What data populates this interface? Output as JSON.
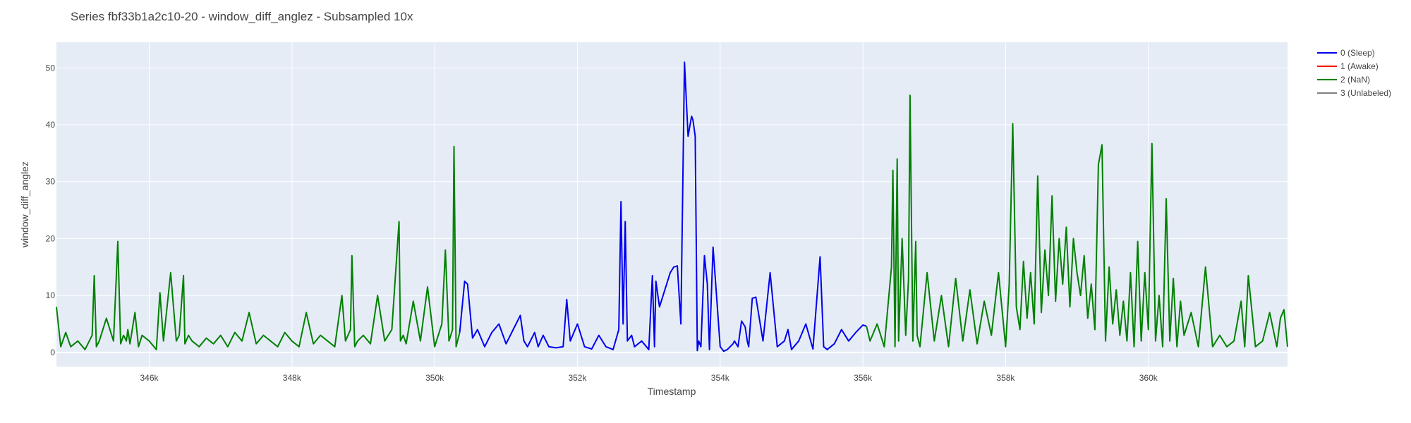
{
  "chart_data": {
    "type": "line",
    "title": "Series fbf33b1a2c10-20 - window_diff_anglez - Subsampled 10x",
    "xlabel": "Timestamp",
    "ylabel": "window_diff_anglez",
    "xlim": [
      344700,
      361950
    ],
    "ylim": [
      -2.5,
      54.5
    ],
    "xticks": [
      346000,
      348000,
      350000,
      352000,
      354000,
      356000,
      358000,
      360000
    ],
    "xtick_labels": [
      "346k",
      "348k",
      "350k",
      "352k",
      "354k",
      "356k",
      "358k",
      "360k"
    ],
    "yticks": [
      0,
      10,
      20,
      30,
      40,
      50
    ],
    "ytick_labels": [
      "0",
      "10",
      "20",
      "30",
      "40",
      "50"
    ],
    "grid": true,
    "legend_position": "top-right",
    "colors": {
      "plot_background": "#e5ecf6",
      "grid": "#ffffff",
      "sleep": "#0000ee",
      "awake": "#ff0000",
      "nan": "#008000",
      "unlabeled": "#808080"
    },
    "series": [
      {
        "name": "0 (Sleep)",
        "color": "#0000ee",
        "x": [
          350350,
          350420,
          350460,
          350530,
          350600,
          350700,
          350800,
          350900,
          351000,
          351100,
          351200,
          351250,
          351300,
          351400,
          351450,
          351520,
          351600,
          351700,
          351800,
          351850,
          351900,
          352000,
          352100,
          352200,
          352300,
          352400,
          352500,
          352580,
          352610,
          352640,
          352670,
          352700,
          352760,
          352800,
          352900,
          353000,
          353050,
          353080,
          353100,
          353150,
          353200,
          353300,
          353350,
          353400,
          353450,
          353500,
          353550,
          353600,
          353620,
          353650,
          353680,
          353700,
          353730,
          353780,
          353820,
          353850,
          353900,
          354000,
          354050,
          354100,
          354180,
          354200,
          354250,
          354300,
          354350,
          354380,
          354400,
          354450,
          354500,
          354600,
          354700,
          354800,
          354900,
          354950,
          355000,
          355100,
          355200,
          355300,
          355400,
          355450,
          355500,
          355600,
          355700,
          355800,
          355900,
          356000,
          356050
        ],
        "values": [
          3.5,
          12.5,
          12,
          2.5,
          4,
          1,
          3.5,
          5,
          1.5,
          4,
          6.5,
          2,
          1,
          3.5,
          1,
          3,
          1,
          0.8,
          1,
          9.3,
          2,
          5,
          1,
          0.6,
          3,
          1,
          0.5,
          4,
          26.5,
          5,
          23,
          2,
          3,
          1,
          2,
          0.5,
          13.5,
          1,
          12.5,
          8,
          10,
          14,
          15,
          15.2,
          5,
          51,
          38,
          41.5,
          40.8,
          38,
          0.3,
          2,
          1,
          17,
          12,
          0.5,
          18.5,
          1,
          0.2,
          0.5,
          1.5,
          2,
          1,
          5.5,
          4.5,
          2,
          1,
          9.5,
          9.7,
          2,
          14,
          1,
          2,
          4,
          0.5,
          2,
          5,
          0.6,
          16.8,
          1,
          0.5,
          1.5,
          4,
          2,
          3.5,
          4.8,
          4.6
        ]
      },
      {
        "name": "1 (Awake)",
        "color": "#ff0000",
        "x": [],
        "values": []
      },
      {
        "name": "2 (NaN)",
        "color": "#008000",
        "x": [
          344700,
          344760,
          344830,
          344900,
          345000,
          345100,
          345200,
          345230,
          345260,
          345300,
          345400,
          345500,
          345560,
          345600,
          345640,
          345680,
          345700,
          345730,
          345800,
          345850,
          345900,
          346000,
          346100,
          346150,
          346200,
          346300,
          346380,
          346420,
          346480,
          346500,
          346550,
          346600,
          346700,
          346800,
          346900,
          347000,
          347100,
          347200,
          347300,
          347400,
          347500,
          347600,
          347700,
          347800,
          347900,
          348000,
          348100,
          348200,
          348300,
          348400,
          348500,
          348600,
          348700,
          348750,
          348820,
          348840,
          348880,
          348920,
          349000,
          349100,
          349200,
          349300,
          349400,
          349500,
          349520,
          349560,
          349600,
          349700,
          349800,
          349900,
          350000,
          350100,
          350150,
          350200,
          350250,
          350270,
          350300,
          350350
        ],
        "values": [
          8,
          1,
          3.5,
          1,
          2,
          0.5,
          3,
          13.5,
          1,
          2,
          6,
          2,
          19.5,
          1.5,
          3,
          2,
          4,
          1.5,
          7,
          1,
          3,
          2,
          0.5,
          10.5,
          2,
          14,
          2,
          3,
          13.5,
          1.5,
          3,
          2,
          1,
          2.5,
          1.5,
          3,
          1,
          3.5,
          2,
          7,
          1.5,
          3,
          2,
          1,
          3.5,
          2,
          1,
          7,
          1.5,
          3,
          2,
          1,
          10,
          2,
          4,
          17,
          1,
          2,
          3,
          1.5,
          10,
          2,
          4,
          23,
          2,
          3,
          1.5,
          9,
          2,
          11.5,
          1,
          5,
          18,
          2,
          4,
          36.2,
          1,
          3.5
        ]
      },
      {
        "name": "2 (NaN)",
        "color": "#008000",
        "x": [
          356050,
          356100,
          356200,
          356300,
          356400,
          356420,
          356450,
          356480,
          356500,
          356550,
          356600,
          356640,
          356660,
          356700,
          356740,
          356760,
          356800,
          356900,
          357000,
          357100,
          357200,
          357300,
          357400,
          357500,
          357600,
          357700,
          357800,
          357900,
          358000,
          358050,
          358100,
          358150,
          358200,
          358250,
          358300,
          358350,
          358400,
          358450,
          358500,
          358550,
          358600,
          358650,
          358700,
          358750,
          358800,
          358850,
          358900,
          358950,
          359000,
          359050,
          359100,
          359150,
          359200,
          359250,
          359300,
          359350,
          359400,
          359450,
          359500,
          359550,
          359600,
          359650,
          359700,
          359750,
          359800,
          359850,
          359900,
          359950,
          360000,
          360050,
          360100,
          360150,
          360200,
          360250,
          360300,
          360350,
          360400,
          360450,
          360500,
          360600,
          360700,
          360800,
          360900,
          361000,
          361100,
          361200,
          361300,
          361350,
          361400,
          361500,
          361600,
          361700,
          361800,
          361850,
          361900,
          361950
        ],
        "values": [
          4.6,
          2,
          5,
          1,
          15,
          32,
          1,
          34,
          2,
          20,
          3,
          13,
          45.2,
          2,
          19.5,
          3,
          1,
          14,
          2,
          10,
          1,
          13,
          2,
          11,
          1.5,
          9,
          3,
          14,
          1,
          12,
          40.2,
          8,
          4,
          16,
          6,
          14,
          5,
          31,
          7,
          18,
          10,
          27.5,
          9,
          20,
          12,
          22,
          8,
          20,
          14,
          10,
          17,
          6,
          12,
          4,
          33,
          36.5,
          2,
          15,
          5,
          11,
          3,
          9,
          2,
          14,
          1,
          19.5,
          2,
          14,
          4,
          36.7,
          2,
          10,
          1,
          27,
          2,
          13,
          1,
          9,
          3,
          7,
          1,
          15,
          1,
          3,
          1,
          2,
          9,
          1,
          13.5,
          1,
          2,
          7,
          1,
          6,
          7.5,
          1
        ]
      },
      {
        "name": "3 (Unlabeled)",
        "color": "#808080",
        "x": [],
        "values": []
      }
    ]
  }
}
